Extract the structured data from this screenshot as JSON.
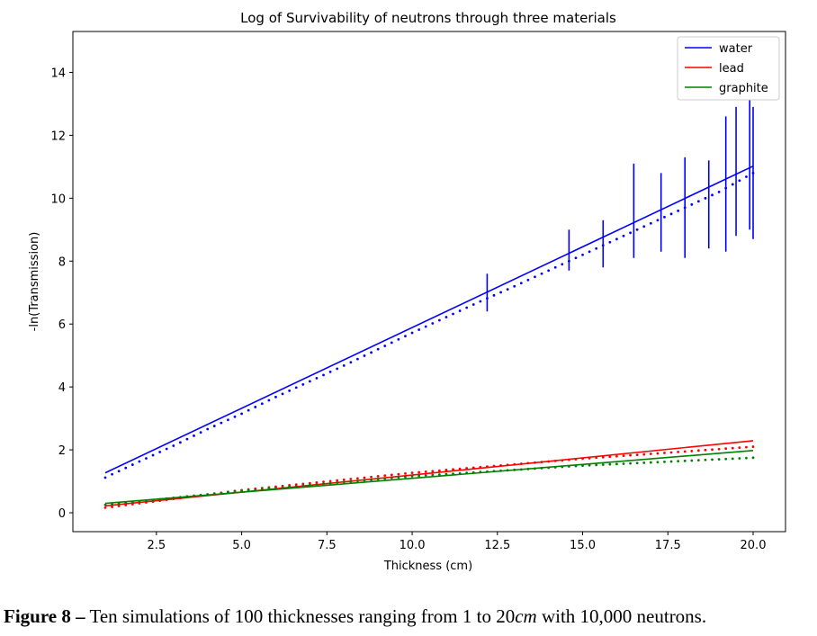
{
  "chart_data": {
    "type": "line",
    "title": "Log of Survivability of neutrons through three materials",
    "xlabel": "Thickness (cm)",
    "ylabel": "-ln(Transmission)",
    "xlim": [
      0.05,
      20.95
    ],
    "ylim": [
      -0.6,
      15.3
    ],
    "xticks": [
      2.5,
      5.0,
      7.5,
      10.0,
      12.5,
      15.0,
      17.5,
      20.0
    ],
    "xtick_labels": [
      "2.5",
      "5.0",
      "7.5",
      "10.0",
      "12.5",
      "15.0",
      "17.5",
      "20.0"
    ],
    "yticks": [
      0,
      2,
      4,
      6,
      8,
      10,
      12,
      14
    ],
    "ytick_labels": [
      "0",
      "2",
      "4",
      "6",
      "8",
      "10",
      "12",
      "14"
    ],
    "grid": false,
    "legend_position": "top-right",
    "series": [
      {
        "name": "water",
        "color": "#0000ff",
        "fit": {
          "x": [
            1.0,
            20.0
          ],
          "y": [
            1.27,
            11.02
          ]
        },
        "points": [
          [
            1.0,
            1.12
          ],
          [
            2.0,
            1.63
          ],
          [
            3.0,
            2.13
          ],
          [
            4.0,
            2.66
          ],
          [
            5.0,
            3.15
          ],
          [
            6.0,
            3.68
          ],
          [
            7.0,
            4.18
          ],
          [
            8.0,
            4.68
          ],
          [
            9.0,
            5.2
          ],
          [
            10.0,
            5.72
          ],
          [
            11.0,
            6.22
          ],
          [
            12.0,
            6.72
          ],
          [
            13.0,
            7.2
          ],
          [
            14.0,
            7.7
          ],
          [
            15.0,
            8.2
          ],
          [
            16.0,
            8.7
          ],
          [
            17.0,
            9.2
          ],
          [
            18.0,
            9.7
          ],
          [
            19.0,
            10.2
          ],
          [
            20.0,
            10.8
          ]
        ],
        "error_bars": [
          [
            12.2,
            6.4,
            7.6
          ],
          [
            14.6,
            7.7,
            9.0
          ],
          [
            15.6,
            7.8,
            9.3
          ],
          [
            16.5,
            8.1,
            11.1
          ],
          [
            17.3,
            8.3,
            10.8
          ],
          [
            18.0,
            8.1,
            11.3
          ],
          [
            18.7,
            8.4,
            11.2
          ],
          [
            19.2,
            8.3,
            12.6
          ],
          [
            19.5,
            8.8,
            12.9
          ],
          [
            19.9,
            9.0,
            14.4
          ],
          [
            20.0,
            8.7,
            12.9
          ]
        ]
      },
      {
        "name": "lead",
        "color": "#ff0000",
        "fit": {
          "x": [
            1.0,
            20.0
          ],
          "y": [
            0.22,
            2.29
          ]
        },
        "points": [
          [
            1.0,
            0.16
          ],
          [
            5.0,
            0.72
          ],
          [
            10.0,
            1.27
          ],
          [
            15.0,
            1.72
          ],
          [
            20.0,
            2.1
          ]
        ]
      },
      {
        "name": "graphite",
        "color": "#008000",
        "fit": {
          "x": [
            1.0,
            20.0
          ],
          "y": [
            0.3,
            1.98
          ]
        },
        "points": [
          [
            1.0,
            0.25
          ],
          [
            5.0,
            0.7
          ],
          [
            10.0,
            1.16
          ],
          [
            15.0,
            1.5
          ],
          [
            20.0,
            1.75
          ]
        ]
      }
    ]
  },
  "caption": {
    "label": "Figure 8 –",
    "text_before": " Ten simulations of 100 thicknesses ranging from 1 to 20",
    "math": "cm",
    "text_after": " with 10,000 neutrons."
  }
}
